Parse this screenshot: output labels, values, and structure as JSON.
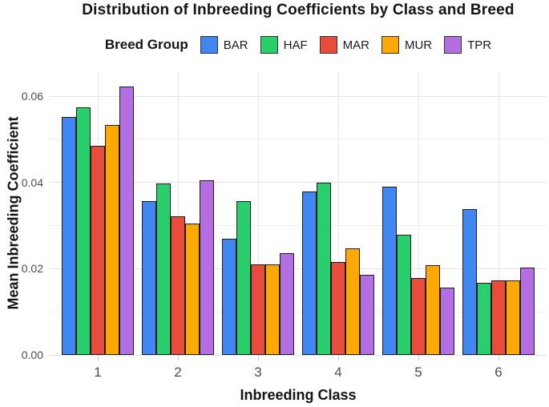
{
  "chart_data": {
    "type": "bar",
    "title": "Distribution of Inbreeding Coefficients by Class and Breed",
    "xlabel": "Inbreeding Class",
    "ylabel": "Mean Inbreeding Coefficient",
    "categories": [
      "1",
      "2",
      "3",
      "4",
      "5",
      "6"
    ],
    "series": [
      {
        "name": "BAR",
        "color": "#4187F1",
        "values": [
          0.0552,
          0.0357,
          0.0269,
          0.0379,
          0.039,
          0.0339
        ]
      },
      {
        "name": "HAF",
        "color": "#2BCE6D",
        "values": [
          0.0574,
          0.0397,
          0.0357,
          0.0399,
          0.0279,
          0.0167
        ]
      },
      {
        "name": "MAR",
        "color": "#E74C3C",
        "values": [
          0.0485,
          0.0322,
          0.0211,
          0.0216,
          0.0178,
          0.0172
        ]
      },
      {
        "name": "MUR",
        "color": "#FCA908",
        "values": [
          0.0533,
          0.0305,
          0.0211,
          0.0248,
          0.0208,
          0.0173
        ]
      },
      {
        "name": "TPR",
        "color": "#B36EE1",
        "values": [
          0.0622,
          0.0405,
          0.0237,
          0.0185,
          0.0157,
          0.0203
        ]
      }
    ],
    "ylim": [
      0,
      0.0656
    ],
    "yticks": [
      0,
      0.02,
      0.04,
      0.06
    ],
    "ytick_labels": [
      "0.00",
      "0.02",
      "0.04",
      "0.06"
    ],
    "minor_yticks": [
      0.01,
      0.03,
      0.05
    ],
    "grid": true,
    "legend_position": "top",
    "bar_outline_color": "#1E1E1E"
  },
  "legend": {
    "title": "Breed Group",
    "items": [
      {
        "label": "BAR",
        "color": "#4187F1"
      },
      {
        "label": "HAF",
        "color": "#2BCE6D"
      },
      {
        "label": "MAR",
        "color": "#E74C3C"
      },
      {
        "label": "MUR",
        "color": "#FCA908"
      },
      {
        "label": "TPR",
        "color": "#B36EE1"
      }
    ]
  },
  "colors": {
    "background": "#FFFFFF",
    "grid_major": "#E3E3E3",
    "grid_minor": "#EFEFEF",
    "axis_tick": "#CDCDCD",
    "tick_label_text": "#4D4D4D",
    "text": "#141414"
  }
}
